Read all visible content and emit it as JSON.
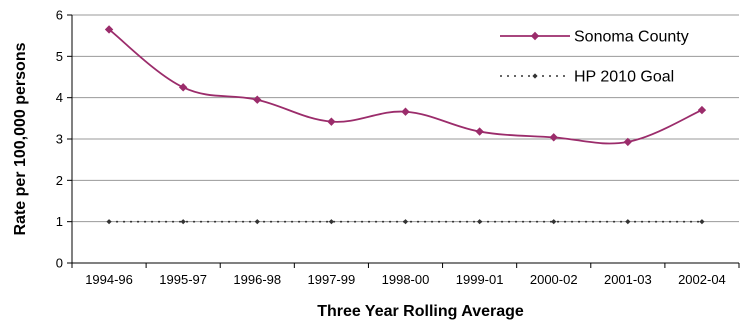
{
  "chart_data": {
    "type": "line",
    "title": "",
    "xlabel": "Three Year Rolling Average",
    "ylabel": "Rate per 100,000 persons",
    "categories": [
      "1994-96",
      "1995-97",
      "1996-98",
      "1997-99",
      "1998-00",
      "1999-01",
      "2000-02",
      "2001-03",
      "2002-04"
    ],
    "ylim": [
      0,
      6
    ],
    "yticks": [
      0,
      1,
      2,
      3,
      4,
      5,
      6
    ],
    "grid": "horizontal",
    "legend_position": "top-right",
    "series": [
      {
        "name": "Sonoma County",
        "values": [
          5.65,
          4.25,
          3.95,
          3.42,
          3.66,
          3.18,
          3.04,
          2.93,
          3.7
        ],
        "color": "#9b2c6b",
        "style": "solid",
        "marker": "diamond"
      },
      {
        "name": "HP 2010 Goal",
        "values": [
          1,
          1,
          1,
          1,
          1,
          1,
          1,
          1,
          1
        ],
        "color": "#333333",
        "style": "dotted",
        "marker": "diamond"
      }
    ]
  }
}
